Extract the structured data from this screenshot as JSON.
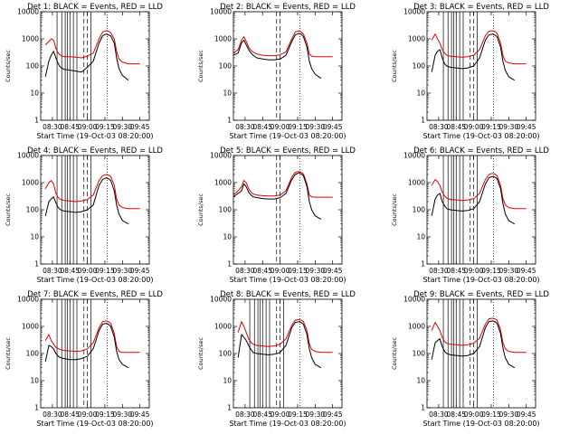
{
  "colors": {
    "events": "#000000",
    "lld": "#e00000",
    "frame": "#000000"
  },
  "chart_data": {
    "type": "line",
    "layout": "3x3 grid of panels",
    "y_scale": "log",
    "ylim": [
      1,
      10000
    ],
    "ylabel": "Counts/sec",
    "yticks": [
      "1",
      "10",
      "100",
      "1000",
      "10000"
    ],
    "xlabel": "Start Time (19-Oct-03 08:20:00)",
    "xticks": [
      "08:30",
      "08:45",
      "09:00",
      "09:15",
      "09:30",
      "09:45"
    ],
    "x_unit": "minutes after 08:20",
    "xlim": [
      0,
      93
    ],
    "x_sample_minutes": [
      0,
      4,
      7,
      9,
      11,
      13,
      15,
      17,
      20,
      25,
      30,
      35,
      40,
      45,
      50,
      53,
      56,
      58,
      60,
      63,
      65,
      67,
      70,
      75,
      80,
      85,
      90
    ],
    "series_legend": "BLACK = Events, RED = LLD",
    "panels": [
      {
        "title": "Det 1: BLACK = Events, RED = LLD",
        "series": [
          {
            "name": "Events",
            "color": "black",
            "values": [
              null,
              40,
              150,
              250,
              350,
              200,
              120,
              90,
              75,
              70,
              65,
              60,
              90,
              150,
              700,
              1300,
              1500,
              1400,
              1300,
              700,
              200,
              80,
              45,
              30,
              null,
              null,
              null
            ]
          },
          {
            "name": "LLD",
            "color": "red",
            "values": [
              null,
              600,
              800,
              1000,
              900,
              450,
              300,
              250,
              220,
              220,
              210,
              200,
              230,
              300,
              1000,
              1800,
              2000,
              1900,
              1700,
              1000,
              350,
              180,
              140,
              120,
              120,
              120,
              null
            ]
          }
        ],
        "solid_vlines_minutes": [
          14,
          18,
          21,
          23,
          25,
          28,
          31,
          43
        ],
        "dashed_vlines_minutes": [
          37,
          40
        ],
        "dotted_vlines_minutes": [
          57
        ]
      },
      {
        "title": "Det 2: BLACK = Events, RED = LLD",
        "series": [
          {
            "name": "Events",
            "color": "black",
            "values": [
              250,
              300,
              700,
              900,
              600,
              400,
              300,
              250,
              200,
              180,
              170,
              170,
              180,
              250,
              800,
              1400,
              1600,
              1500,
              1200,
              500,
              150,
              80,
              50,
              35,
              null,
              null,
              null
            ]
          },
          {
            "name": "LLD",
            "color": "red",
            "values": [
              300,
              400,
              900,
              1200,
              800,
              500,
              380,
              320,
              280,
              250,
              240,
              240,
              260,
              330,
              1000,
              1800,
              2000,
              1800,
              1500,
              700,
              280,
              230,
              220,
              220,
              220,
              220,
              null
            ]
          }
        ],
        "solid_vlines_minutes": [],
        "dashed_vlines_minutes": [
          37,
          40
        ],
        "dotted_vlines_minutes": [
          57
        ]
      },
      {
        "title": "Det 3: BLACK = Events, RED = LLD",
        "series": [
          {
            "name": "Events",
            "color": "black",
            "values": [
              null,
              60,
              250,
              350,
              400,
              200,
              120,
              100,
              90,
              85,
              80,
              85,
              100,
              200,
              900,
              1400,
              1500,
              1400,
              1200,
              500,
              150,
              70,
              40,
              30,
              null,
              null,
              null
            ]
          },
          {
            "name": "LLD",
            "color": "red",
            "values": [
              null,
              900,
              1500,
              1000,
              700,
              400,
              300,
              250,
              230,
              220,
              210,
              220,
              250,
              400,
              1300,
              1900,
              2000,
              1900,
              1600,
              700,
              250,
              150,
              130,
              120,
              120,
              120,
              null
            ]
          }
        ],
        "solid_vlines_minutes": [
          14,
          18,
          21,
          23,
          25,
          28,
          31,
          43
        ],
        "dashed_vlines_minutes": [
          37,
          40
        ],
        "dotted_vlines_minutes": [
          57
        ]
      },
      {
        "title": "Det 4: BLACK = Events, RED = LLD",
        "series": [
          {
            "name": "Events",
            "color": "black",
            "values": [
              null,
              60,
              200,
              250,
              300,
              180,
              120,
              100,
              90,
              85,
              80,
              85,
              100,
              150,
              800,
              1300,
              1500,
              1400,
              1200,
              500,
              150,
              70,
              40,
              30,
              null,
              null,
              null
            ]
          },
          {
            "name": "LLD",
            "color": "red",
            "values": [
              null,
              600,
              1000,
              1200,
              900,
              400,
              280,
              240,
              220,
              210,
              200,
              210,
              240,
              350,
              1200,
              1800,
              2000,
              1900,
              1700,
              800,
              250,
              150,
              120,
              110,
              110,
              110,
              null
            ]
          }
        ],
        "solid_vlines_minutes": [
          14,
          18,
          21,
          23,
          25,
          28,
          31,
          43
        ],
        "dashed_vlines_minutes": [
          37,
          40
        ],
        "dotted_vlines_minutes": [
          57
        ]
      },
      {
        "title": "Det 5: BLACK = Events, RED = LLD",
        "series": [
          {
            "name": "Events",
            "color": "black",
            "values": [
              300,
              400,
              500,
              900,
              700,
              450,
              350,
              300,
              280,
              260,
              250,
              250,
              280,
              400,
              1300,
              2000,
              2300,
              2100,
              1800,
              700,
              200,
              100,
              60,
              45,
              null,
              null,
              null
            ]
          },
          {
            "name": "LLD",
            "color": "red",
            "values": [
              350,
              500,
              700,
              1200,
              1000,
              600,
              450,
              380,
              350,
              330,
              320,
              320,
              350,
              500,
              1600,
              2400,
              2600,
              2400,
              2100,
              900,
              350,
              300,
              290,
              290,
              290,
              290,
              null
            ]
          }
        ],
        "solid_vlines_minutes": [],
        "dashed_vlines_minutes": [
          37,
          40
        ],
        "dotted_vlines_minutes": [
          57
        ]
      },
      {
        "title": "Det 6: BLACK = Events, RED = LLD",
        "series": [
          {
            "name": "Events",
            "color": "black",
            "values": [
              null,
              60,
              250,
              350,
              400,
              200,
              140,
              110,
              100,
              95,
              90,
              95,
              110,
              200,
              900,
              1500,
              1700,
              1600,
              1400,
              600,
              170,
              70,
              40,
              30,
              null,
              null,
              null
            ]
          },
          {
            "name": "LLD",
            "color": "red",
            "values": [
              null,
              800,
              1300,
              1100,
              800,
              450,
              320,
              270,
              240,
              230,
              220,
              230,
              260,
              400,
              1300,
              2000,
              2200,
              2100,
              1800,
              800,
              260,
              150,
              120,
              110,
              110,
              110,
              null
            ]
          }
        ],
        "solid_vlines_minutes": [
          14,
          18,
          21,
          23,
          25,
          28,
          31,
          43
        ],
        "dashed_vlines_minutes": [
          37,
          40
        ],
        "dotted_vlines_minutes": [
          57
        ]
      },
      {
        "title": "Det 7: BLACK = Events, RED = LLD",
        "series": [
          {
            "name": "Events",
            "color": "black",
            "values": [
              null,
              50,
              200,
              180,
              150,
              100,
              80,
              70,
              65,
              60,
              60,
              65,
              80,
              150,
              700,
              1200,
              1300,
              1200,
              1000,
              400,
              120,
              60,
              40,
              30,
              null,
              null,
              null
            ]
          },
          {
            "name": "LLD",
            "color": "red",
            "values": [
              null,
              300,
              500,
              300,
              220,
              170,
              150,
              140,
              130,
              125,
              120,
              125,
              150,
              250,
              900,
              1500,
              1600,
              1500,
              1300,
              550,
              180,
              120,
              110,
              110,
              110,
              110,
              null
            ]
          }
        ],
        "solid_vlines_minutes": [
          14,
          18,
          21,
          23,
          25,
          28,
          31,
          43
        ],
        "dashed_vlines_minutes": [
          37,
          40
        ],
        "dotted_vlines_minutes": [
          57
        ]
      },
      {
        "title": "Det 8: BLACK = Events, RED = LLD",
        "series": [
          {
            "name": "Events",
            "color": "black",
            "values": [
              null,
              70,
              500,
              400,
              300,
              200,
              140,
              110,
              100,
              95,
              90,
              95,
              110,
              200,
              900,
              1400,
              1500,
              1400,
              1200,
              500,
              150,
              70,
              40,
              30,
              null,
              null,
              null
            ]
          },
          {
            "name": "LLD",
            "color": "red",
            "values": [
              null,
              600,
              1500,
              1000,
              600,
              350,
              260,
              220,
              200,
              190,
              180,
              190,
              220,
              350,
              1100,
              1700,
              1800,
              1700,
              1500,
              700,
              230,
              140,
              120,
              110,
              110,
              110,
              null
            ]
          }
        ],
        "solid_vlines_minutes": [
          14,
          18,
          21,
          23,
          25,
          28,
          31,
          43
        ],
        "dashed_vlines_minutes": [
          37,
          40
        ],
        "dotted_vlines_minutes": [
          57
        ]
      },
      {
        "title": "Det 9: BLACK = Events, RED = LLD",
        "series": [
          {
            "name": "Events",
            "color": "black",
            "values": [
              null,
              60,
              250,
              300,
              350,
              180,
              120,
              100,
              90,
              85,
              80,
              85,
              100,
              180,
              900,
              1500,
              1600,
              1500,
              1300,
              550,
              160,
              70,
              40,
              30,
              null,
              null,
              null
            ]
          },
          {
            "name": "LLD",
            "color": "red",
            "values": [
              null,
              700,
              1400,
              1000,
              700,
              400,
              280,
              240,
              220,
              210,
              200,
              210,
              240,
              370,
              1200,
              1900,
              2000,
              1900,
              1700,
              750,
              250,
              150,
              120,
              110,
              110,
              110,
              null
            ]
          }
        ],
        "solid_vlines_minutes": [
          14,
          18,
          21,
          23,
          25,
          28,
          31,
          43
        ],
        "dashed_vlines_minutes": [
          37,
          40
        ],
        "dotted_vlines_minutes": [
          57
        ]
      }
    ]
  }
}
